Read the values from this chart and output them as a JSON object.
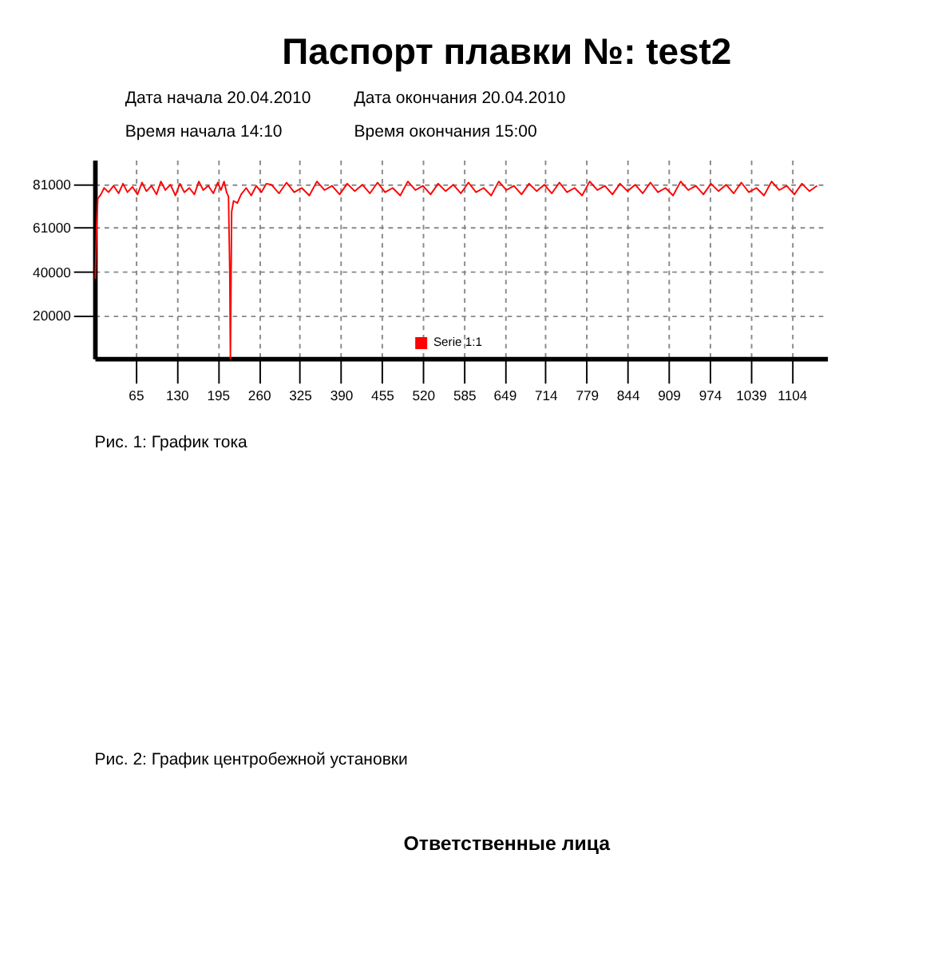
{
  "chart_data": {
    "type": "line",
    "title": "Паспорт плавки №: test2",
    "annotations": [
      "Дата начала 20.04.2010",
      "Дата окончания 20.04.2010",
      "Время начала 14:10",
      "Время окончания 15:00",
      "Рис. 1: График тока",
      "Рис. 2: График центробежной установки",
      "Ответственные лица"
    ],
    "series": [
      {
        "name": "Serie 1:1",
        "color": "#ff0000",
        "x": [
          1,
          3,
          5,
          10,
          15,
          22,
          30,
          38,
          45,
          52,
          60,
          68,
          75,
          82,
          90,
          98,
          105,
          112,
          120,
          128,
          135,
          142,
          150,
          158,
          165,
          172,
          180,
          188,
          195,
          200,
          205,
          209,
          212,
          214,
          215,
          217,
          220,
          226,
          232,
          240,
          248,
          256,
          264,
          272,
          280,
          292,
          304,
          316,
          328,
          340,
          352,
          364,
          376,
          388,
          400,
          412,
          424,
          436,
          448,
          460,
          472,
          484,
          496,
          508,
          520,
          532,
          544,
          556,
          568,
          580,
          592,
          604,
          616,
          628,
          640,
          652,
          664,
          676,
          688,
          700,
          712,
          724,
          736,
          748,
          760,
          772,
          784,
          796,
          808,
          820,
          832,
          844,
          856,
          868,
          880,
          892,
          904,
          916,
          928,
          940,
          952,
          964,
          976,
          988,
          1000,
          1012,
          1024,
          1036,
          1048,
          1060,
          1072,
          1084,
          1096,
          1108,
          1120,
          1132,
          1144
        ],
        "values": [
          37000,
          60000,
          74000,
          76000,
          79000,
          77000,
          80000,
          76500,
          81000,
          77000,
          79500,
          76000,
          81500,
          77500,
          80000,
          76000,
          82000,
          78000,
          80500,
          75500,
          81000,
          77000,
          79000,
          76000,
          82000,
          78000,
          80000,
          76500,
          81500,
          78000,
          82000,
          77000,
          75000,
          40000,
          0,
          68000,
          73000,
          72000,
          76000,
          79000,
          75500,
          80000,
          77000,
          81000,
          80500,
          76500,
          81500,
          77000,
          79000,
          75500,
          82000,
          78000,
          80000,
          76000,
          81000,
          77500,
          80500,
          76500,
          81500,
          77000,
          79000,
          75500,
          82000,
          78000,
          80000,
          76000,
          81000,
          77500,
          80500,
          76500,
          81500,
          77000,
          79000,
          75500,
          82000,
          78000,
          80000,
          76000,
          81000,
          77500,
          80500,
          76500,
          81500,
          77000,
          79000,
          75500,
          82000,
          78000,
          80000,
          76000,
          81000,
          77500,
          80500,
          76500,
          81500,
          77000,
          79000,
          75500,
          82000,
          78000,
          80000,
          76000,
          81000,
          77500,
          80500,
          76500,
          81500,
          77000,
          79000,
          75500,
          82000,
          78000,
          80000,
          76000,
          81000,
          77500,
          80000
        ]
      }
    ],
    "xlim": [
      0,
      1160
    ],
    "xticks": [
      65,
      130,
      195,
      260,
      325,
      390,
      455,
      520,
      585,
      649,
      714,
      779,
      844,
      909,
      974,
      1039,
      1104
    ],
    "ylim": [
      0,
      92000
    ],
    "yticks": [
      20000,
      40000,
      61000,
      81000
    ],
    "grid": true,
    "legend": "bottom",
    "line_style": "solid",
    "marker": "none"
  }
}
